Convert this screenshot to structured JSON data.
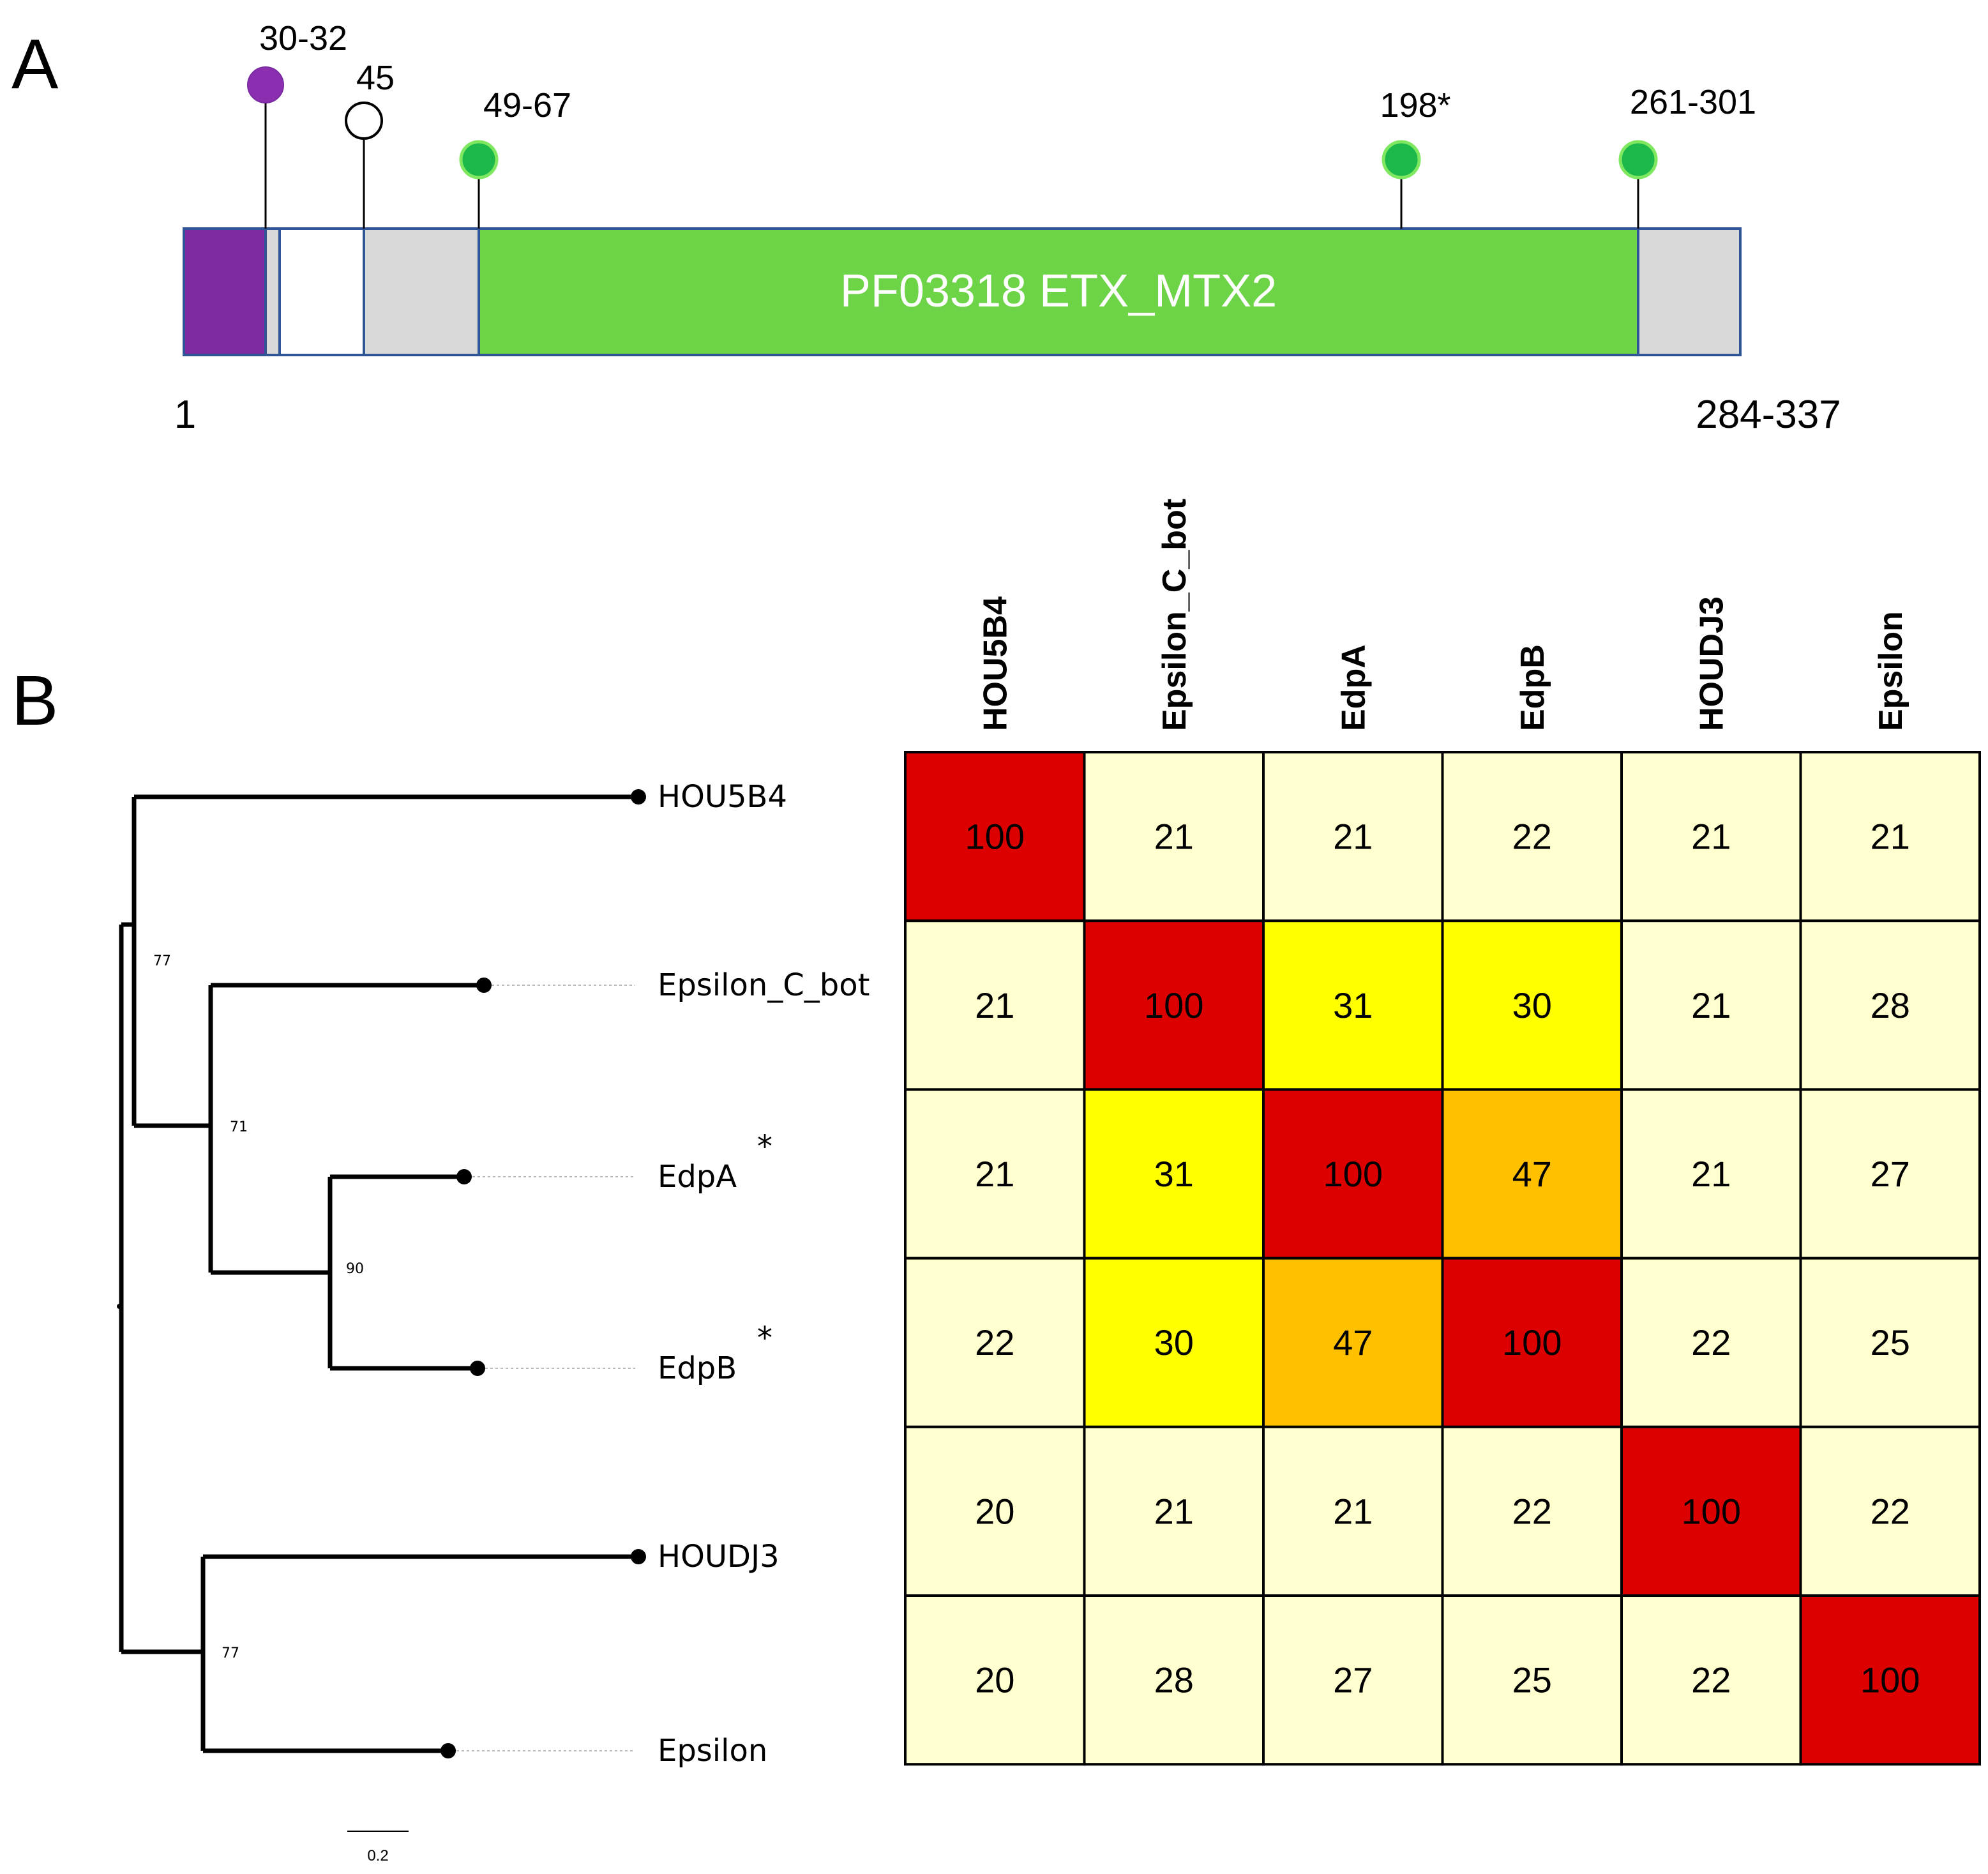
{
  "panel_a": {
    "panel_label": "A",
    "domain_label": "PF03318 ETX_MTX2",
    "start_label": "1",
    "end_label": "284-337",
    "sites": [
      {
        "label": "30-32",
        "color": "#8b2fb0",
        "filled": true
      },
      {
        "label": "45",
        "color": "#ffffff",
        "filled": false
      },
      {
        "label": "49-67",
        "color": "#1db84a",
        "filled": true
      },
      {
        "label": "198*",
        "color": "#1db84a",
        "filled": true
      },
      {
        "label": "261-301",
        "color": "#1db84a",
        "filled": true
      }
    ],
    "colors": {
      "signal": "#7b2aa0",
      "domain": "#6dd447",
      "background": "#d9d9d9",
      "outline": "#2f5597"
    }
  },
  "panel_b": {
    "panel_label": "B",
    "tree": {
      "leaves": [
        "HOU5B4",
        "Epsilon_C_bot",
        "EdpA",
        "EdpB",
        "HOUDJ3",
        "Epsilon"
      ],
      "leaf_asterisk": [
        "",
        "",
        "*",
        "*",
        "",
        ""
      ],
      "bootstrap": [
        "77",
        "71",
        "90",
        "77"
      ],
      "scale_label": "0.2"
    },
    "matrix": {
      "columns": [
        "HOU5B4",
        "Epsilon_C_bot",
        "EdpA",
        "EdpB",
        "HOUDJ3",
        "Epsilon"
      ],
      "rows": [
        [
          100,
          21,
          21,
          22,
          21,
          21
        ],
        [
          21,
          100,
          31,
          30,
          21,
          28
        ],
        [
          21,
          31,
          100,
          47,
          21,
          27
        ],
        [
          22,
          30,
          47,
          100,
          22,
          25
        ],
        [
          20,
          21,
          21,
          22,
          100,
          22
        ],
        [
          20,
          28,
          27,
          25,
          22,
          100
        ]
      ],
      "colors": {
        "high": "#dd0000",
        "mid_high": "#ffc000",
        "mid": "#ffff00",
        "low": "#ffffd0"
      }
    }
  }
}
